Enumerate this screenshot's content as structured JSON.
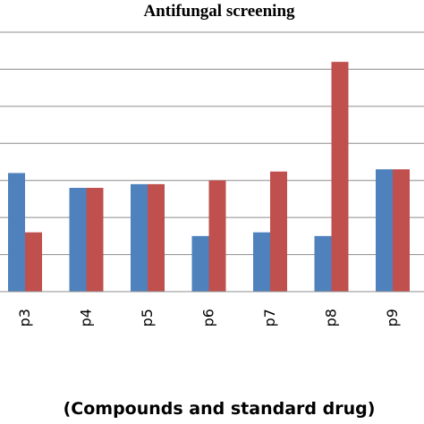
{
  "chart_data": {
    "type": "bar",
    "title": "Antifungal screening",
    "xlabel": "(Compounds and standard drug)",
    "ylabel": "",
    "categories": [
      "p3",
      "p4",
      "p5",
      "p6",
      "p7",
      "p8",
      "p9"
    ],
    "series": [
      {
        "values": [
          16,
          14,
          14.5,
          7.5,
          8,
          7.5,
          16.5
        ],
        "color": "#4f81bd"
      },
      {
        "values": [
          8,
          14,
          14.5,
          15,
          16.2,
          31,
          16.5
        ],
        "color": "#c0504d"
      }
    ],
    "ylim": [
      0,
      35
    ],
    "y_gridlines": [
      5,
      10,
      15,
      20,
      25,
      30,
      35
    ],
    "grid": true,
    "tick_label_rotation": -90
  }
}
